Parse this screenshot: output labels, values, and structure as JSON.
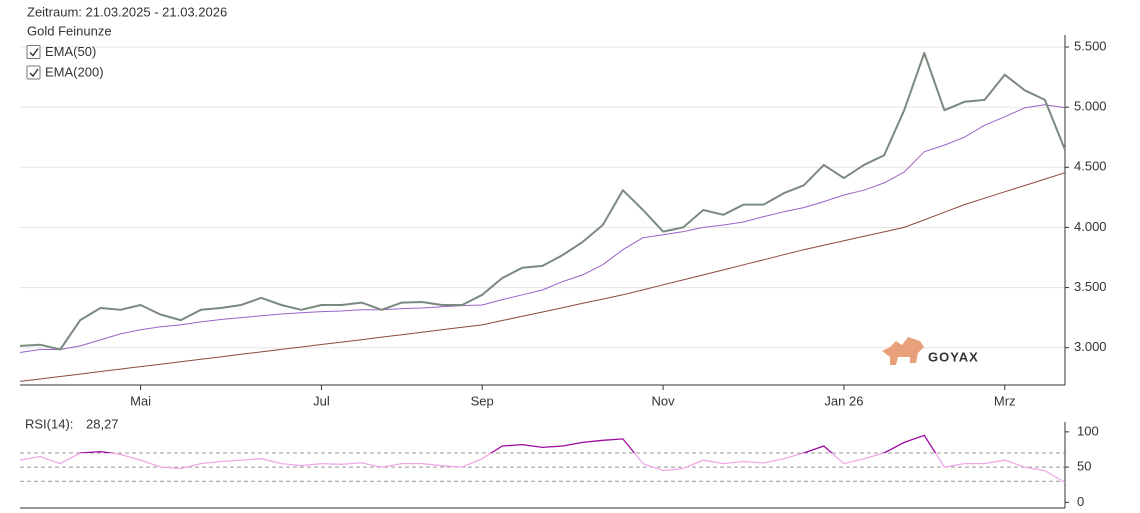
{
  "chart_data": [
    {
      "type": "line",
      "title": "Zeitraum: 21.03.2025 - 21.03.2026",
      "logo": "GOYAX",
      "categories": [
        null,
        null,
        null,
        null,
        null,
        null,
        "Mai",
        null,
        null,
        null,
        null,
        null,
        null,
        null,
        null,
        "Jul",
        null,
        null,
        null,
        null,
        null,
        null,
        null,
        "Sep",
        null,
        null,
        null,
        null,
        null,
        null,
        null,
        null,
        "Nov",
        null,
        null,
        null,
        null,
        null,
        null,
        null,
        null,
        "Jan 26",
        null,
        null,
        null,
        null,
        null,
        null,
        null,
        "Mrz",
        null,
        null,
        null
      ],
      "series": [
        {
          "name": "Gold Feinunze",
          "color": "#7b8a7e",
          "width": 2,
          "values": [
            3015,
            3025,
            2985,
            3230,
            3330,
            3315,
            3355,
            3275,
            3230,
            3315,
            3330,
            3355,
            3415,
            3355,
            3315,
            3355,
            3355,
            3375,
            3315,
            3375,
            3380,
            3355,
            3355,
            3440,
            3580,
            3665,
            3680,
            3770,
            3880,
            4020,
            4310,
            4145,
            3965,
            4000,
            4145,
            4105,
            4190,
            4190,
            4285,
            4350,
            4520,
            4410,
            4520,
            4600,
            4975,
            5450,
            4975,
            5045,
            5060,
            5270,
            5140,
            5060,
            4645
          ]
        },
        {
          "name": "EMA(50)",
          "color": "#9a62c8",
          "width": 1,
          "checkbox": true,
          "values": [
            2960,
            2985,
            2985,
            3015,
            3065,
            3115,
            3150,
            3175,
            3190,
            3215,
            3235,
            3250,
            3265,
            3280,
            3290,
            3300,
            3305,
            3315,
            3315,
            3325,
            3330,
            3340,
            3350,
            3355,
            3400,
            3440,
            3480,
            3550,
            3605,
            3690,
            3815,
            3915,
            3940,
            3965,
            4000,
            4020,
            4045,
            4090,
            4130,
            4165,
            4215,
            4270,
            4310,
            4370,
            4460,
            4630,
            4685,
            4750,
            4850,
            4920,
            4995,
            5020,
            4995
          ]
        },
        {
          "name": "EMA(200)",
          "color": "#8b4a3c",
          "width": 1,
          "checkbox": true,
          "values": [
            2720,
            2740,
            2761,
            2781,
            2802,
            2822,
            2843,
            2863,
            2883,
            2904,
            2924,
            2945,
            2965,
            2986,
            3006,
            3027,
            3047,
            3067,
            3088,
            3108,
            3129,
            3149,
            3170,
            3190,
            3226,
            3261,
            3297,
            3333,
            3369,
            3404,
            3440,
            3481,
            3523,
            3564,
            3605,
            3647,
            3689,
            3731,
            3773,
            3815,
            3852,
            3889,
            3926,
            3963,
            4000,
            4063,
            4127,
            4190,
            4243,
            4296,
            4349,
            4402,
            4455
          ]
        }
      ],
      "ylim": [
        2690,
        5600
      ],
      "yticks": [
        {
          "value": 3000,
          "label": "3.000"
        },
        {
          "value": 3500,
          "label": "3.500"
        },
        {
          "value": 4000,
          "label": "4.000"
        },
        {
          "value": 4500,
          "label": "4.500"
        },
        {
          "value": 5000,
          "label": "5.000"
        },
        {
          "value": 5500,
          "label": "5.500"
        }
      ],
      "grid": true
    },
    {
      "type": "rsi",
      "label": "RSI(14):",
      "current": {
        "value": 28.27,
        "label": "28,27"
      },
      "color": "#f0a8e8",
      "overbought_color": "#9a0aa0",
      "values": [
        60,
        65,
        55,
        70,
        72,
        68,
        60,
        50,
        48,
        55,
        58,
        60,
        62,
        55,
        52,
        55,
        54,
        56,
        50,
        55,
        55,
        52,
        50,
        62,
        80,
        82,
        78,
        80,
        85,
        88,
        90,
        55,
        45,
        48,
        60,
        55,
        58,
        56,
        62,
        70,
        80,
        55,
        62,
        70,
        85,
        95,
        50,
        55,
        55,
        60,
        50,
        45,
        28.27
      ],
      "levels": [
        30,
        50,
        70
      ],
      "ylim": [
        -8,
        114
      ],
      "yticks": [
        0,
        50,
        100
      ]
    }
  ]
}
